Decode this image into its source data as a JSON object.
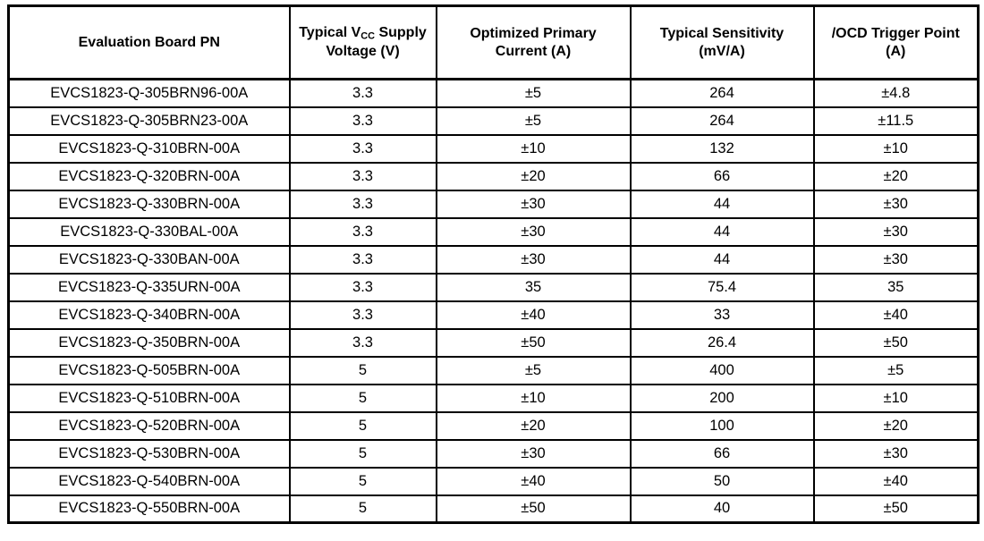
{
  "table": {
    "header": {
      "col1": "Evaluation Board PN",
      "col2_pre": "Typical V",
      "col2_sub": "CC",
      "col2_rest": " Supply Voltage (V)",
      "col3": "Optimized Primary Current (A)",
      "col4": "Typical Sensitivity (mV/A)",
      "col5": "/OCD Trigger Point (A)"
    },
    "rows": [
      [
        "EVCS1823-Q-305BRN96-00A",
        "3.3",
        "±5",
        "264",
        "±4.8"
      ],
      [
        "EVCS1823-Q-305BRN23-00A",
        "3.3",
        "±5",
        "264",
        "±11.5"
      ],
      [
        "EVCS1823-Q-310BRN-00A",
        "3.3",
        "±10",
        "132",
        "±10"
      ],
      [
        "EVCS1823-Q-320BRN-00A",
        "3.3",
        "±20",
        "66",
        "±20"
      ],
      [
        "EVCS1823-Q-330BRN-00A",
        "3.3",
        "±30",
        "44",
        "±30"
      ],
      [
        "EVCS1823-Q-330BAL-00A",
        "3.3",
        "±30",
        "44",
        "±30"
      ],
      [
        "EVCS1823-Q-330BAN-00A",
        "3.3",
        "±30",
        "44",
        "±30"
      ],
      [
        "EVCS1823-Q-335URN-00A",
        "3.3",
        "35",
        "75.4",
        "35"
      ],
      [
        "EVCS1823-Q-340BRN-00A",
        "3.3",
        "±40",
        "33",
        "±40"
      ],
      [
        "EVCS1823-Q-350BRN-00A",
        "3.3",
        "±50",
        "26.4",
        "±50"
      ],
      [
        "EVCS1823-Q-505BRN-00A",
        "5",
        "±5",
        "400",
        "±5"
      ],
      [
        "EVCS1823-Q-510BRN-00A",
        "5",
        "±10",
        "200",
        "±10"
      ],
      [
        "EVCS1823-Q-520BRN-00A",
        "5",
        "±20",
        "100",
        "±20"
      ],
      [
        "EVCS1823-Q-530BRN-00A",
        "5",
        "±30",
        "66",
        "±30"
      ],
      [
        "EVCS1823-Q-540BRN-00A",
        "5",
        "±40",
        "50",
        "±40"
      ],
      [
        "EVCS1823-Q-550BRN-00A",
        "5",
        "±50",
        "40",
        "±50"
      ]
    ],
    "colors": {
      "border": "#000000",
      "text": "#000000",
      "background": "#ffffff"
    }
  }
}
